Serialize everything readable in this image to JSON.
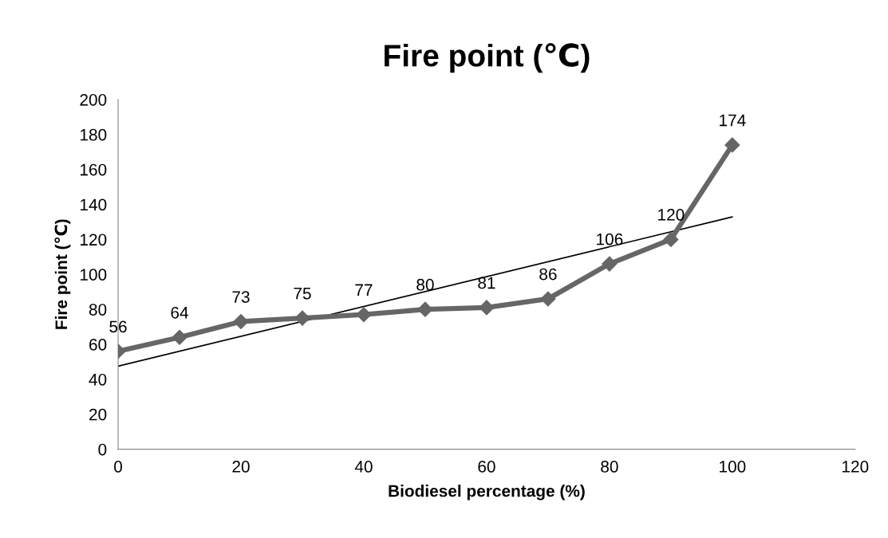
{
  "chart_data": {
    "type": "line",
    "title": "Fire point (℃)",
    "xlabel": "Biodiesel percentage (%)",
    "ylabel": "Fire point (℃)",
    "xlim": [
      0,
      120
    ],
    "xticks": [
      0,
      20,
      40,
      60,
      80,
      100,
      120
    ],
    "ylim": [
      0,
      200
    ],
    "yticks": [
      0,
      20,
      40,
      60,
      80,
      100,
      120,
      140,
      160,
      180,
      200
    ],
    "grid": false,
    "series": [
      {
        "x": [
          0,
          10,
          20,
          30,
          40,
          50,
          60,
          70,
          80,
          90,
          100
        ],
        "values": [
          56,
          64,
          73,
          75,
          77,
          80,
          81,
          86,
          106,
          120,
          174
        ],
        "color": "#666666",
        "marker": "diamond",
        "line_style": "solid",
        "value_labels": [
          "56",
          "64",
          "73",
          "75",
          "77",
          "80",
          "81",
          "86",
          "106",
          "120",
          "174"
        ]
      },
      {
        "type": "line",
        "x": [
          0,
          100
        ],
        "values": [
          47.5,
          132.9
        ],
        "color": "#000000",
        "marker": "none",
        "line_style": "solid"
      }
    ]
  }
}
